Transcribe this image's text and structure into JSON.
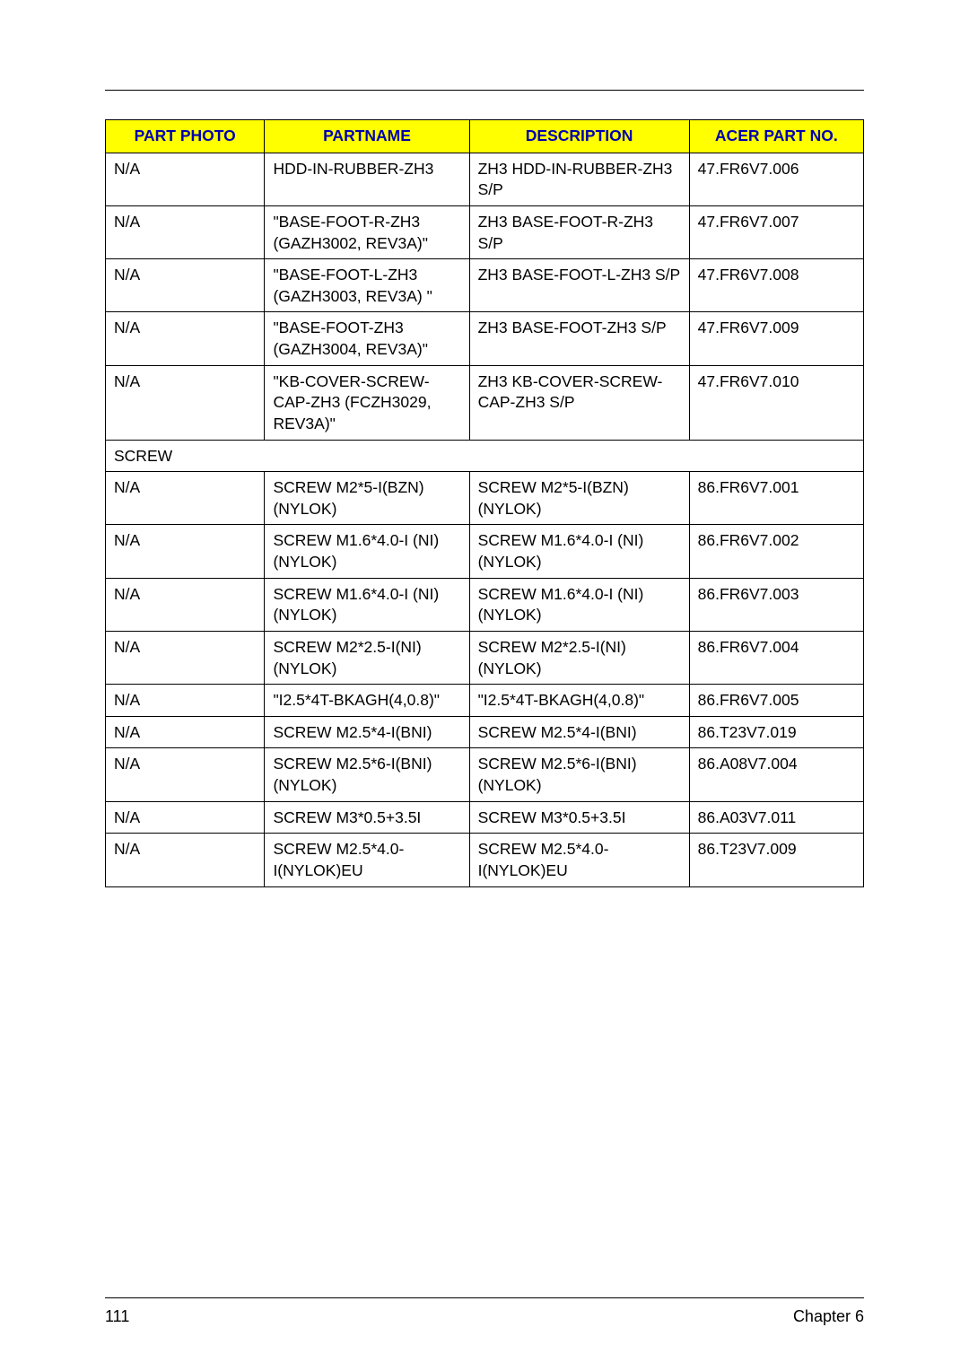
{
  "table": {
    "header_bg": "#ffff00",
    "header_color": "#0000b0",
    "border_color": "#000000",
    "columns": [
      {
        "key": "photo",
        "label": "PART PHOTO"
      },
      {
        "key": "name",
        "label": "PARTNAME"
      },
      {
        "key": "desc",
        "label": "DESCRIPTION"
      },
      {
        "key": "part",
        "label": "ACER PART NO."
      }
    ],
    "rows": [
      {
        "photo": "N/A",
        "name": "HDD-IN-RUBBER-ZH3",
        "desc": "ZH3 HDD-IN-RUBBER-ZH3 S/P",
        "part": "47.FR6V7.006"
      },
      {
        "photo": "N/A",
        "name": "\"BASE-FOOT-R-ZH3 (GAZH3002, REV3A)\"",
        "desc": "ZH3 BASE-FOOT-R-ZH3 S/P",
        "part": "47.FR6V7.007"
      },
      {
        "photo": "N/A",
        "name": "\"BASE-FOOT-L-ZH3 (GAZH3003, REV3A) \"",
        "desc": "ZH3 BASE-FOOT-L-ZH3 S/P",
        "part": "47.FR6V7.008"
      },
      {
        "photo": "N/A",
        "name": "\"BASE-FOOT-ZH3 (GAZH3004, REV3A)\"",
        "desc": "ZH3 BASE-FOOT-ZH3 S/P",
        "part": "47.FR6V7.009"
      },
      {
        "photo": "N/A",
        "name": "\"KB-COVER-SCREW-CAP-ZH3 (FCZH3029, REV3A)\"",
        "desc": "ZH3 KB-COVER-SCREW-CAP-ZH3 S/P",
        "part": "47.FR6V7.010"
      },
      {
        "section": "SCREW"
      },
      {
        "photo": "N/A",
        "name": "SCREW M2*5-I(BZN)(NYLOK)",
        "desc": "SCREW M2*5-I(BZN)(NYLOK)",
        "part": "86.FR6V7.001"
      },
      {
        "photo": "N/A",
        "name": "SCREW M1.6*4.0-I (NI)(NYLOK)",
        "desc": "SCREW M1.6*4.0-I (NI)(NYLOK)",
        "part": "86.FR6V7.002"
      },
      {
        "photo": "N/A",
        "name": "SCREW M1.6*4.0-I (NI)(NYLOK)",
        "desc": "SCREW M1.6*4.0-I (NI)(NYLOK)",
        "part": "86.FR6V7.003"
      },
      {
        "photo": "N/A",
        "name": "SCREW M2*2.5-I(NI)(NYLOK)",
        "desc": "SCREW M2*2.5-I(NI)(NYLOK)",
        "part": "86.FR6V7.004"
      },
      {
        "photo": "N/A",
        "name": "\"I2.5*4T-BKAGH(4,0.8)\"",
        "desc": "\"I2.5*4T-BKAGH(4,0.8)\"",
        "part": "86.FR6V7.005"
      },
      {
        "photo": "N/A",
        "name": "SCREW M2.5*4-I(BNI)",
        "desc": "SCREW M2.5*4-I(BNI)",
        "part": "86.T23V7.019"
      },
      {
        "photo": "N/A",
        "name": "SCREW M2.5*6-I(BNI)(NYLOK)",
        "desc": "SCREW M2.5*6-I(BNI)(NYLOK)",
        "part": "86.A08V7.004"
      },
      {
        "photo": "N/A",
        "name": "SCREW M3*0.5+3.5I",
        "desc": "SCREW M3*0.5+3.5I",
        "part": "86.A03V7.011"
      },
      {
        "photo": "N/A",
        "name": "SCREW M2.5*4.0-I(NYLOK)EU",
        "desc": "SCREW M2.5*4.0-I(NYLOK)EU",
        "part": "86.T23V7.009"
      }
    ]
  },
  "footer": {
    "page_number": "111",
    "chapter": "Chapter 6"
  }
}
